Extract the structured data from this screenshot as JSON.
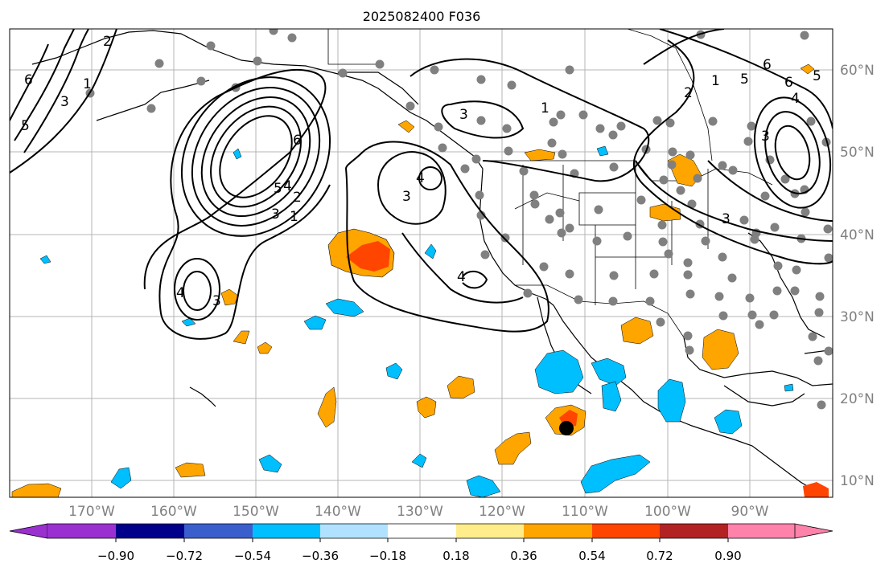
{
  "title": "2025082400 F036",
  "lon_ticks": [
    "170°W",
    "160°W",
    "150°W",
    "140°W",
    "130°W",
    "120°W",
    "110°W",
    "100°W",
    "90°W"
  ],
  "lat_ticks": [
    "60°N",
    "50°N",
    "40°N",
    "30°N",
    "20°N",
    "10°N"
  ],
  "colorbar": {
    "colors": [
      "#9b30d0",
      "#00008b",
      "#3a5fcd",
      "#00bfff",
      "#b0e2ff",
      "#ffffff",
      "#ffec8b",
      "#ffa500",
      "#ff4500",
      "#b22222",
      "#ff82ab"
    ],
    "ticks": [
      "−0.90",
      "−0.72",
      "−0.54",
      "−0.36",
      "−0.18",
      "0.18",
      "0.36",
      "0.54",
      "0.72",
      "0.90"
    ]
  },
  "contour_labels": [
    "6",
    "5",
    "3",
    "1",
    "2",
    "6",
    "5",
    "4",
    "3",
    "2",
    "1",
    "4",
    "3",
    "3",
    "3",
    "4",
    "1",
    "2",
    "1",
    "5",
    "6",
    "4",
    "5",
    "3",
    "6",
    "3",
    "4"
  ],
  "colors": {
    "frame": "#000000",
    "grid": "#b4b4b4",
    "tick_text": "#808080",
    "dot": "#808080",
    "orange": "#ffa500",
    "red": "#ff4500",
    "cyan": "#00bfff"
  }
}
